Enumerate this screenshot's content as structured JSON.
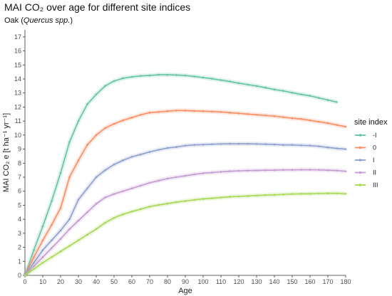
{
  "chart_data": {
    "type": "line",
    "title": "MAI CO₂ over age for different site indices",
    "subtitle_prefix": "Oak (",
    "subtitle_italic": "Quercus spp.",
    "subtitle_suffix": ")",
    "xlabel": "Age",
    "ylabel": "MAI CO₂ e [t ha⁻¹ yr⁻¹]",
    "xlim": [
      0,
      180
    ],
    "ylim": [
      0,
      17.5
    ],
    "xticks": [
      0,
      10,
      20,
      30,
      40,
      50,
      60,
      70,
      80,
      90,
      100,
      110,
      120,
      130,
      140,
      150,
      160,
      170,
      180
    ],
    "yticks": [
      0,
      1,
      2,
      3,
      4,
      5,
      6,
      7,
      8,
      9,
      10,
      11,
      12,
      13,
      14,
      15,
      16,
      17
    ],
    "grid": false,
    "legend_title": "site index",
    "legend_position": "right",
    "series": [
      {
        "name": "-I",
        "color": "#66c2a5",
        "x": [
          0,
          5,
          10,
          15,
          20,
          25,
          30,
          35,
          40,
          45,
          50,
          55,
          60,
          65,
          70,
          75,
          80,
          85,
          90,
          95,
          100,
          105,
          110,
          115,
          120,
          125,
          130,
          135,
          140,
          145,
          150,
          155,
          160,
          165,
          170,
          175
        ],
        "y": [
          0,
          1.8,
          3.5,
          5.3,
          7.3,
          9.5,
          11.0,
          12.2,
          12.9,
          13.5,
          13.85,
          14.05,
          14.15,
          14.22,
          14.25,
          14.3,
          14.3,
          14.28,
          14.25,
          14.18,
          14.1,
          14.02,
          13.92,
          13.82,
          13.7,
          13.6,
          13.5,
          13.38,
          13.25,
          13.15,
          13.02,
          12.9,
          12.8,
          12.65,
          12.5,
          12.35
        ]
      },
      {
        "name": "0",
        "color": "#fc8d62",
        "x": [
          0,
          5,
          10,
          15,
          20,
          25,
          30,
          35,
          40,
          45,
          50,
          55,
          60,
          65,
          70,
          75,
          80,
          85,
          90,
          95,
          100,
          105,
          110,
          115,
          120,
          125,
          130,
          135,
          140,
          145,
          150,
          155,
          160,
          165,
          170,
          175,
          180
        ],
        "y": [
          0,
          1.3,
          2.5,
          3.6,
          4.8,
          7.0,
          8.2,
          9.3,
          10.0,
          10.5,
          10.8,
          11.05,
          11.25,
          11.45,
          11.6,
          11.65,
          11.7,
          11.75,
          11.75,
          11.72,
          11.7,
          11.68,
          11.65,
          11.6,
          11.55,
          11.5,
          11.45,
          11.4,
          11.35,
          11.28,
          11.2,
          11.15,
          11.05,
          10.95,
          10.85,
          10.72,
          10.6
        ]
      },
      {
        "name": "I",
        "color": "#8da0cb",
        "x": [
          0,
          5,
          10,
          15,
          20,
          25,
          30,
          35,
          40,
          45,
          50,
          55,
          60,
          65,
          70,
          75,
          80,
          85,
          90,
          95,
          100,
          105,
          110,
          115,
          120,
          125,
          130,
          135,
          140,
          145,
          150,
          155,
          160,
          165,
          170,
          175,
          180
        ],
        "y": [
          0,
          0.9,
          1.8,
          2.5,
          3.2,
          4.0,
          5.4,
          6.2,
          7.0,
          7.5,
          7.9,
          8.2,
          8.45,
          8.62,
          8.8,
          8.95,
          9.08,
          9.15,
          9.25,
          9.3,
          9.32,
          9.35,
          9.37,
          9.38,
          9.38,
          9.38,
          9.37,
          9.35,
          9.33,
          9.3,
          9.3,
          9.27,
          9.25,
          9.2,
          9.12,
          9.05,
          9.0
        ]
      },
      {
        "name": "II",
        "color": "#c39bd3",
        "x": [
          0,
          5,
          10,
          15,
          20,
          25,
          30,
          35,
          40,
          45,
          50,
          55,
          60,
          65,
          70,
          75,
          80,
          85,
          90,
          95,
          100,
          105,
          110,
          115,
          120,
          125,
          130,
          135,
          140,
          145,
          150,
          155,
          160,
          165,
          170,
          175,
          180
        ],
        "y": [
          0,
          0.65,
          1.3,
          1.95,
          2.6,
          3.3,
          3.9,
          4.5,
          5.1,
          5.55,
          5.8,
          6.0,
          6.2,
          6.4,
          6.6,
          6.75,
          6.9,
          7.0,
          7.1,
          7.2,
          7.28,
          7.33,
          7.38,
          7.42,
          7.45,
          7.47,
          7.48,
          7.5,
          7.5,
          7.52,
          7.52,
          7.53,
          7.53,
          7.52,
          7.5,
          7.47,
          7.42
        ]
      },
      {
        "name": "III",
        "color": "#a6d854",
        "x": [
          0,
          5,
          10,
          15,
          20,
          25,
          30,
          35,
          40,
          45,
          50,
          55,
          60,
          65,
          70,
          75,
          80,
          85,
          90,
          95,
          100,
          105,
          110,
          115,
          120,
          125,
          130,
          135,
          140,
          145,
          150,
          155,
          160,
          165,
          170,
          175,
          180
        ],
        "y": [
          0,
          0.45,
          0.9,
          1.3,
          1.7,
          2.1,
          2.5,
          2.9,
          3.3,
          3.75,
          4.1,
          4.35,
          4.55,
          4.72,
          4.9,
          5.02,
          5.12,
          5.22,
          5.3,
          5.38,
          5.45,
          5.5,
          5.55,
          5.6,
          5.63,
          5.66,
          5.69,
          5.72,
          5.74,
          5.77,
          5.8,
          5.81,
          5.82,
          5.84,
          5.85,
          5.85,
          5.82
        ]
      }
    ]
  }
}
